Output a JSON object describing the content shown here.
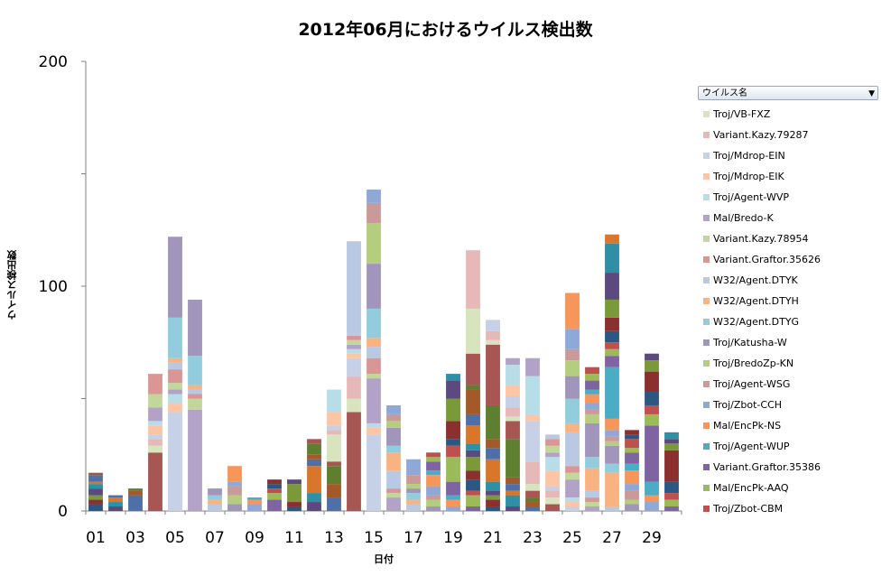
{
  "chart_data": {
    "type": "bar",
    "stacked": true,
    "title": "2012年06月におけるウイルス検出数",
    "xlabel": "日付",
    "ylabel": "ウイルス検出数",
    "ylim": [
      0,
      200
    ],
    "y_ticks": [
      "0",
      "100",
      "200"
    ],
    "categories": [
      "01",
      "02",
      "03",
      "04",
      "05",
      "06",
      "07",
      "08",
      "09",
      "10",
      "11",
      "12",
      "13",
      "14",
      "15",
      "16",
      "17",
      "18",
      "19",
      "20",
      "21",
      "22",
      "23",
      "24",
      "25",
      "26",
      "27",
      "28",
      "29",
      "30"
    ],
    "x_tick_labels": [
      "01",
      "03",
      "05",
      "07",
      "09",
      "11",
      "13",
      "15",
      "17",
      "19",
      "21",
      "23",
      "25",
      "27",
      "29"
    ],
    "legend_title": "ウイルス名",
    "legend_placement": "right",
    "legend_entries": [
      {
        "name": "Troj/VB-FXZ",
        "color": "#d7e4bd"
      },
      {
        "name": "Variant.Kazy.79287",
        "color": "#e6b9b8"
      },
      {
        "name": "Troj/Mdrop-EIN",
        "color": "#c6d0e6"
      },
      {
        "name": "Troj/Mdrop-EIK",
        "color": "#fcc5a5"
      },
      {
        "name": "Troj/Agent-WVP",
        "color": "#b7dee8"
      },
      {
        "name": "Mal/Bredo-K",
        "color": "#b3a2c7"
      },
      {
        "name": "Variant.Kazy.78954",
        "color": "#c3d69b"
      },
      {
        "name": "Variant.Graftor.35626",
        "color": "#d99694"
      },
      {
        "name": "W32/Agent.DTYK",
        "color": "#b9c9e4"
      },
      {
        "name": "W32/Agent.DTYH",
        "color": "#f9b381"
      },
      {
        "name": "W32/Agent.DTYG",
        "color": "#93cddd"
      },
      {
        "name": "Troj/Katusha-W",
        "color": "#a195bb"
      },
      {
        "name": "Troj/BredoZp-KN",
        "color": "#b5cd7f"
      },
      {
        "name": "Troj/Agent-WSG",
        "color": "#c99a97"
      },
      {
        "name": "Troj/Zbot-CCH",
        "color": "#8ea9d8"
      },
      {
        "name": "Mal/EncPk-NS",
        "color": "#f6965a"
      },
      {
        "name": "Troj/Agent-WUP",
        "color": "#4bacc6"
      },
      {
        "name": "Variant.Graftor.35386",
        "color": "#8064a2"
      },
      {
        "name": "Mal/EncPk-AAQ",
        "color": "#9bbb59"
      },
      {
        "name": "Troj/Zbot-CBM",
        "color": "#c0504d"
      }
    ],
    "base_series_colors": [
      "#2c5782",
      "#8b2f2f",
      "#7a9a3a",
      "#5c4a7f",
      "#2e8fa5",
      "#d8772c",
      "#4f6fa8",
      "#a25a2a",
      "#5d7f2f",
      "#a85654"
    ],
    "stacks": [
      [
        3,
        2,
        2,
        3,
        2,
        1,
        3,
        1
      ],
      [
        2,
        2,
        2,
        1
      ],
      [
        7,
        2,
        1
      ],
      [
        26,
        3,
        3,
        2,
        4,
        2,
        6,
        6,
        9
      ],
      [
        44,
        4,
        4,
        2,
        3,
        6,
        3,
        2,
        18,
        36
      ],
      [
        45,
        5,
        2,
        2,
        2,
        13,
        25
      ],
      [
        3,
        2,
        2,
        3
      ],
      [
        3,
        4,
        4,
        2,
        7
      ],
      [
        3,
        2,
        1
      ],
      [
        5,
        3,
        2,
        2,
        2
      ],
      [
        2,
        2,
        8,
        2
      ],
      [
        4,
        4,
        12,
        3,
        2,
        5,
        2
      ],
      [
        6,
        6,
        8,
        2,
        12,
        2,
        2,
        6,
        10
      ],
      [
        44,
        6,
        10,
        8,
        2,
        2,
        2,
        2,
        2,
        42
      ],
      [
        34,
        3,
        2,
        20,
        2,
        7,
        5,
        4,
        13,
        20,
        18,
        9,
        6
      ],
      [
        6,
        2,
        2,
        8,
        8,
        3,
        8,
        3,
        3,
        4
      ],
      [
        3,
        2,
        3,
        2,
        2,
        4,
        7
      ],
      [
        2,
        3,
        2,
        4,
        5,
        2,
        4,
        2,
        2
      ],
      [
        2,
        3,
        2,
        6,
        11,
        5,
        3,
        8,
        10,
        8,
        3
      ],
      [
        2,
        5,
        2,
        5,
        4,
        6,
        3,
        3,
        8,
        5,
        11,
        2,
        14,
        20,
        26
      ],
      [
        2,
        3,
        2,
        2,
        4,
        10,
        5,
        4,
        15,
        27,
        2,
        4,
        5
      ],
      [
        2,
        5,
        2,
        3,
        3,
        17,
        8,
        2,
        4,
        5,
        5,
        9,
        3
      ],
      [
        2,
        2,
        2,
        3,
        3,
        10,
        18,
        3,
        17,
        8
      ],
      [
        3,
        3,
        3,
        2,
        7,
        6,
        2,
        3,
        3,
        2
      ],
      [
        2,
        2,
        2,
        8,
        3,
        3,
        15,
        4,
        11,
        10,
        7,
        5,
        9,
        16
      ],
      [
        2,
        2,
        2,
        3,
        10,
        5,
        15,
        4,
        2,
        3,
        4,
        2,
        4,
        3,
        3
      ],
      [
        2,
        15,
        4,
        8,
        2,
        2,
        3,
        5,
        23,
        5,
        3,
        3,
        5,
        6,
        8,
        12,
        13,
        4
      ],
      [
        3,
        2,
        4,
        3,
        6,
        3,
        5,
        2,
        4,
        2,
        2
      ],
      [
        4,
        3,
        6,
        25,
        5,
        4,
        6,
        9,
        5,
        3
      ],
      [
        2,
        3,
        3,
        5,
        14,
        3,
        2,
        3
      ]
    ]
  }
}
